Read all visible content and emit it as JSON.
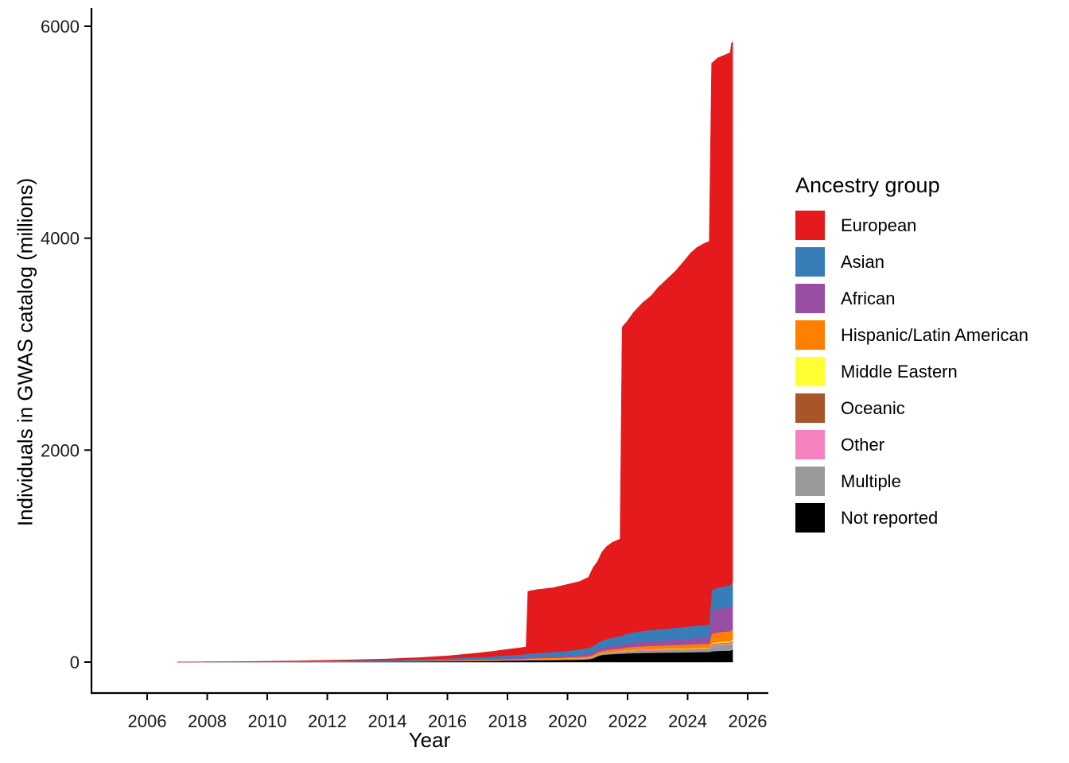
{
  "chart_data": {
    "type": "area",
    "variant": "stacked-cumulative",
    "title": "",
    "xlabel": "Year",
    "ylabel": "Individuals in GWAS catalog (millions)",
    "legend_title": "Ancestry group",
    "legend_position": "right",
    "grid": false,
    "xlim": [
      2004.5,
      2026.7
    ],
    "ylim": [
      0,
      6000
    ],
    "x_ticks": [
      2006,
      2008,
      2010,
      2012,
      2014,
      2016,
      2018,
      2020,
      2022,
      2024,
      2026
    ],
    "y_ticks": [
      0,
      2000,
      4000,
      6000
    ],
    "x": [
      2007,
      2009,
      2011,
      2013,
      2014,
      2015,
      2016,
      2017,
      2017.5,
      2018,
      2018.4,
      2018.62,
      2018.68,
      2019,
      2019.5,
      2020,
      2020.4,
      2020.7,
      2020.85,
      2021,
      2021.15,
      2021.3,
      2021.5,
      2021.75,
      2021.82,
      2022,
      2022.2,
      2022.5,
      2022.8,
      2023,
      2023.3,
      2023.6,
      2023.9,
      2024.1,
      2024.3,
      2024.55,
      2024.72,
      2024.8,
      2025,
      2025.25,
      2025.42,
      2025.46,
      2025.5
    ],
    "stacking_note": "series listed bottom-to-top; values are cumulative individuals in millions",
    "series": [
      {
        "id": "not-reported",
        "name": "Not reported",
        "color": "#000000",
        "values": [
          0.2,
          0.8,
          2,
          4,
          5,
          6.5,
          8,
          10,
          12,
          14,
          15,
          16,
          17,
          18,
          19,
          21,
          23,
          26,
          35,
          55,
          68,
          72,
          76,
          79,
          80,
          83,
          85,
          87,
          88,
          89,
          90,
          91,
          92,
          93,
          94,
          95,
          95,
          102,
          105,
          107,
          108,
          115,
          116
        ]
      },
      {
        "id": "multiple",
        "name": "Multiple",
        "color": "#999999",
        "values": [
          0.05,
          0.2,
          0.5,
          1,
          1.3,
          1.7,
          2,
          3,
          3.5,
          4,
          4.5,
          5,
          5,
          5.5,
          6,
          7,
          8,
          9,
          9.5,
          10,
          11,
          12,
          13,
          14.5,
          15,
          18,
          19,
          20,
          21,
          21.5,
          22,
          22.5,
          23,
          23.5,
          24,
          24.5,
          25,
          52,
          55,
          57,
          58,
          60,
          60
        ]
      },
      {
        "id": "other",
        "name": "Other",
        "color": "#F781BF",
        "values": [
          0.02,
          0.1,
          0.3,
          0.5,
          0.6,
          0.8,
          1,
          1.3,
          1.5,
          1.8,
          2,
          2,
          2.2,
          2.5,
          2.8,
          3,
          3.3,
          3.6,
          3.8,
          4,
          4.3,
          4.5,
          5,
          5.2,
          5.3,
          5.8,
          6,
          6.2,
          6.5,
          6.7,
          7,
          7.2,
          7.4,
          7.6,
          7.8,
          8,
          8,
          12,
          13,
          13.5,
          14,
          15,
          15
        ]
      },
      {
        "id": "oceanic",
        "name": "Oceanic",
        "color": "#A65628",
        "values": [
          0.01,
          0.05,
          0.1,
          0.2,
          0.25,
          0.3,
          0.35,
          0.5,
          0.55,
          0.6,
          0.65,
          0.7,
          0.7,
          0.8,
          0.9,
          1,
          1.1,
          1.2,
          1.3,
          1.4,
          1.5,
          1.6,
          1.7,
          1.8,
          1.9,
          2,
          2.1,
          2.2,
          2.3,
          2.4,
          2.5,
          2.6,
          2.7,
          2.8,
          2.9,
          3,
          3,
          5,
          5.5,
          5.8,
          6,
          6.5,
          6.5
        ]
      },
      {
        "id": "middle-eastern",
        "name": "Middle Eastern",
        "color": "#FFFF33",
        "values": [
          0.01,
          0.05,
          0.15,
          0.3,
          0.35,
          0.45,
          0.55,
          0.7,
          0.8,
          0.9,
          1,
          1,
          1.1,
          1.2,
          1.4,
          1.5,
          1.7,
          1.9,
          2,
          2.2,
          2.4,
          2.5,
          2.7,
          2.9,
          3,
          3.3,
          3.5,
          3.7,
          3.9,
          4,
          4.2,
          4.4,
          4.6,
          4.8,
          4.9,
          5,
          5,
          9,
          10,
          10.5,
          11,
          12,
          12
        ]
      },
      {
        "id": "hispanic-latin-american",
        "name": "Hispanic/Latin American",
        "color": "#FF7F00",
        "values": [
          0.05,
          0.3,
          0.8,
          1.5,
          2,
          2.7,
          3.5,
          5,
          6,
          7,
          7.5,
          8,
          8.5,
          9.5,
          10.5,
          12,
          13.5,
          15,
          16.5,
          18,
          19.5,
          21,
          23,
          24.5,
          25,
          27.5,
          28.5,
          30,
          31,
          32,
          33,
          34,
          35,
          36,
          37,
          38,
          38,
          88,
          92,
          94,
          95,
          97,
          98
        ]
      },
      {
        "id": "african",
        "name": "African",
        "color": "#984EA3",
        "values": [
          0.05,
          0.3,
          1,
          2,
          2.5,
          3.5,
          5,
          7,
          8,
          9.5,
          10.5,
          11,
          12,
          13,
          15,
          17,
          19.5,
          22,
          24,
          27,
          29,
          31,
          33,
          34.5,
          35,
          39,
          41,
          43,
          45,
          46.5,
          48.5,
          50.5,
          52,
          53.5,
          54.5,
          55.5,
          56,
          215,
          222,
          226,
          228,
          232,
          233
        ]
      },
      {
        "id": "asian",
        "name": "Asian",
        "color": "#377EB8",
        "values": [
          0.2,
          1,
          3,
          6,
          8,
          10.5,
          13,
          19,
          22,
          26,
          29,
          31,
          33,
          36,
          40,
          45,
          50,
          55,
          58,
          63,
          68,
          72,
          78,
          83,
          85,
          93,
          97,
          101,
          105,
          107,
          110,
          112,
          115,
          117,
          119,
          121,
          122,
          195,
          200,
          204,
          206,
          210,
          211
        ]
      },
      {
        "id": "european",
        "name": "European",
        "color": "#E41A1C",
        "values": [
          0.1,
          1.2,
          3,
          6.5,
          10,
          15,
          24,
          38,
          46,
          56,
          63,
          67,
          588,
          598,
          604,
          625,
          640,
          666,
          740,
          769,
          836,
          873,
          898,
          915,
          2910,
          2948,
          3018,
          3097,
          3157,
          3221,
          3293,
          3366,
          3458,
          3522,
          3566,
          3600,
          3618,
          4972,
          4998,
          5012,
          5024,
          5093,
          5099
        ]
      }
    ]
  }
}
